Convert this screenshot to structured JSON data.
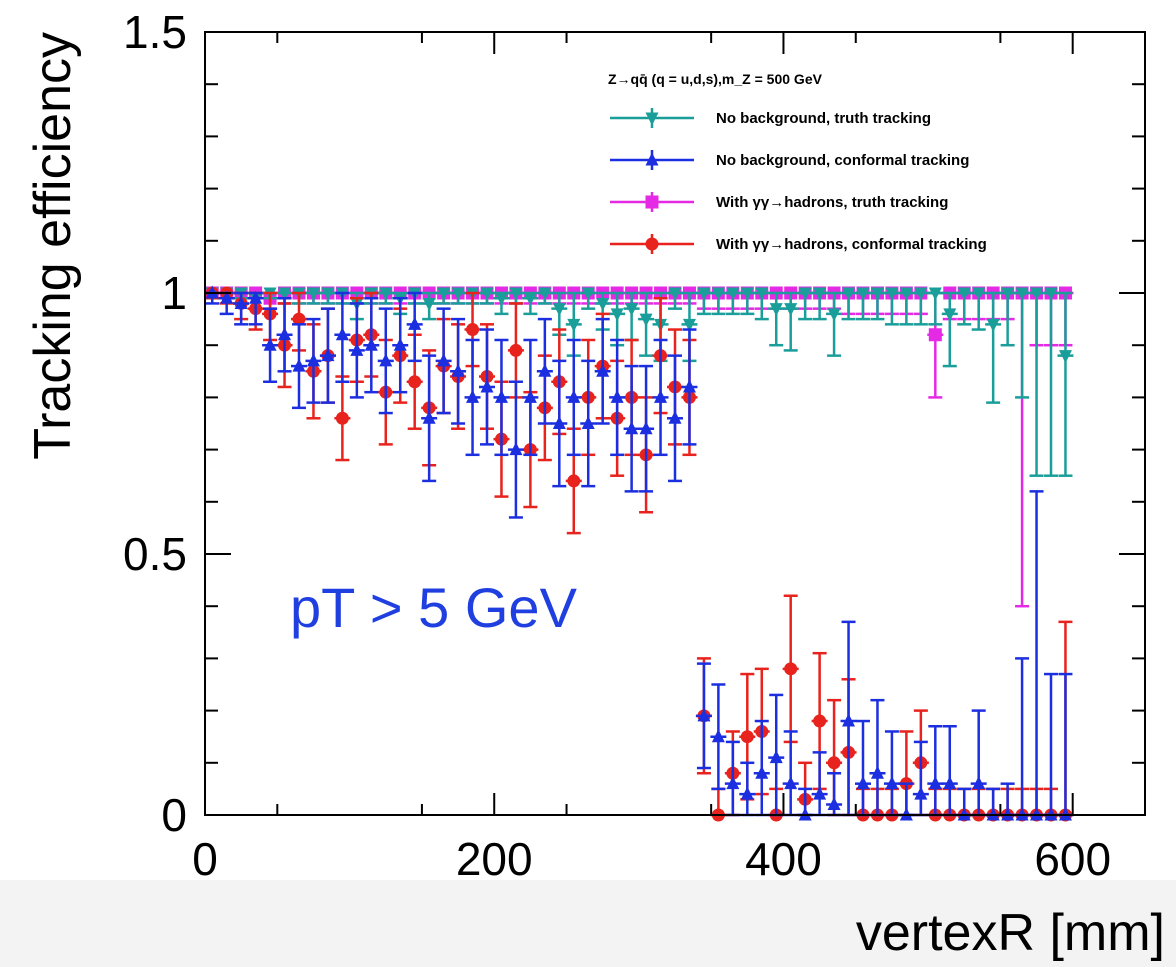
{
  "chart_data": {
    "type": "scatter",
    "xlabel": "vertexR [mm]",
    "ylabel": "Tracking efficiency",
    "xlim": [
      0,
      650
    ],
    "ylim": [
      0,
      1.5
    ],
    "x_ticks": [
      "0",
      "200",
      "400",
      "600"
    ],
    "y_ticks": [
      "0",
      "0.5",
      "1",
      "1.5"
    ],
    "legend_title": "Z→qq̄ (q = u,d,s),m_Z = 500 GeV",
    "legend_position": "top-right",
    "annotation": "pT > 5 GeV",
    "annotation_color": "#1f3fe0",
    "series": [
      {
        "name": "No background, truth tracking",
        "color": "#1a9e9a",
        "marker": "triangle-down",
        "x": [
          5,
          15,
          25,
          35,
          45,
          55,
          65,
          75,
          85,
          95,
          105,
          115,
          125,
          135,
          145,
          155,
          165,
          175,
          185,
          195,
          205,
          215,
          225,
          235,
          245,
          255,
          265,
          275,
          285,
          295,
          305,
          315,
          325,
          335,
          345,
          355,
          365,
          375,
          385,
          395,
          405,
          415,
          425,
          435,
          445,
          455,
          465,
          475,
          485,
          495,
          505,
          515,
          525,
          535,
          545,
          555,
          565,
          575,
          585,
          595
        ],
        "y": [
          1,
          1,
          1,
          0.99,
          1,
          1,
          1,
          1,
          1,
          1,
          0.98,
          1,
          1,
          0.99,
          1,
          0.98,
          1,
          1,
          1,
          1,
          0.99,
          1,
          0.99,
          1,
          0.97,
          0.94,
          1,
          0.98,
          0.96,
          0.97,
          0.95,
          0.94,
          1,
          0.94,
          1,
          1,
          1,
          1,
          1,
          0.97,
          0.97,
          1,
          1,
          0.96,
          1,
          1,
          1,
          1,
          1,
          1,
          1,
          0.96,
          1,
          1,
          0.94,
          1,
          1,
          1,
          1,
          0.88
        ],
        "err": [
          0.01,
          0.01,
          0.01,
          0.02,
          0.01,
          0.02,
          0.02,
          0.02,
          0.02,
          0.02,
          0.03,
          0.02,
          0.02,
          0.03,
          0.02,
          0.03,
          0.02,
          0.02,
          0.02,
          0.02,
          0.03,
          0.02,
          0.03,
          0.02,
          0.05,
          0.06,
          0.03,
          0.05,
          0.06,
          0.06,
          0.07,
          0.07,
          0.03,
          0.07,
          0.04,
          0.04,
          0.04,
          0.04,
          0.05,
          0.07,
          0.08,
          0.05,
          0.05,
          0.08,
          0.05,
          0.05,
          0.05,
          0.06,
          0.06,
          0.06,
          0.06,
          0.1,
          0.06,
          0.07,
          0.15,
          0.1,
          0.2,
          0.35,
          0.35,
          0.23
        ]
      },
      {
        "name": "No background, conformal tracking",
        "color": "#1c2fe0",
        "marker": "triangle-up",
        "x": [
          5,
          15,
          25,
          35,
          45,
          55,
          65,
          75,
          85,
          95,
          105,
          115,
          125,
          135,
          145,
          155,
          165,
          175,
          185,
          195,
          205,
          215,
          225,
          235,
          245,
          255,
          265,
          275,
          285,
          295,
          305,
          315,
          325,
          335,
          345,
          355,
          365,
          375,
          385,
          395,
          405,
          415,
          425,
          435,
          445,
          455,
          465,
          475,
          485,
          495,
          505,
          515,
          525,
          535,
          545,
          555,
          565,
          575,
          585,
          595
        ],
        "y": [
          1,
          0.99,
          0.98,
          0.99,
          0.9,
          0.92,
          0.86,
          0.87,
          0.88,
          0.92,
          0.89,
          0.9,
          0.87,
          0.9,
          0.94,
          0.76,
          0.87,
          0.85,
          0.8,
          0.82,
          0.8,
          0.7,
          0.8,
          0.85,
          0.75,
          0.8,
          0.75,
          0.85,
          0.8,
          0.74,
          0.74,
          0.8,
          0.76,
          0.82,
          0.19,
          0.15,
          0.06,
          0.04,
          0.08,
          0.11,
          0.06,
          0,
          0.04,
          0.02,
          0.18,
          0.06,
          0.08,
          0.06,
          0,
          0.04,
          0.06,
          0.06,
          0,
          0.06,
          0,
          0,
          0,
          0,
          0,
          0
        ],
        "err": [
          0.02,
          0.03,
          0.04,
          0.05,
          0.07,
          0.07,
          0.08,
          0.08,
          0.09,
          0.09,
          0.09,
          0.09,
          0.1,
          0.09,
          0.07,
          0.12,
          0.1,
          0.1,
          0.11,
          0.11,
          0.11,
          0.13,
          0.11,
          0.1,
          0.12,
          0.11,
          0.12,
          0.1,
          0.11,
          0.12,
          0.12,
          0.11,
          0.12,
          0.11,
          0.1,
          0.1,
          0.08,
          0.06,
          0.1,
          0.12,
          0.1,
          0.05,
          0.08,
          0.06,
          0.19,
          0.12,
          0.14,
          0.1,
          0.06,
          0.1,
          0.11,
          0.11,
          0.05,
          0.14,
          0.05,
          0.06,
          0.3,
          0.62,
          0.27,
          0.27
        ]
      },
      {
        "name": "With γγ→hadrons, truth tracking",
        "color": "#e52ae5",
        "marker": "square",
        "x": [
          5,
          15,
          25,
          35,
          45,
          55,
          65,
          75,
          85,
          95,
          105,
          115,
          125,
          135,
          145,
          155,
          165,
          175,
          185,
          195,
          205,
          215,
          225,
          235,
          245,
          255,
          265,
          275,
          285,
          295,
          305,
          315,
          325,
          335,
          345,
          355,
          365,
          375,
          385,
          395,
          405,
          415,
          425,
          435,
          445,
          455,
          465,
          475,
          485,
          495,
          505,
          515,
          525,
          535,
          545,
          555,
          565,
          575,
          585,
          595
        ],
        "y": [
          1,
          1,
          1,
          1,
          0.99,
          1,
          1,
          1,
          1,
          1,
          1,
          1,
          1,
          1,
          1,
          1,
          1,
          1,
          1,
          1,
          1,
          1,
          1,
          1,
          1,
          1,
          1,
          1,
          1,
          1,
          1,
          1,
          1,
          1,
          1,
          1,
          1,
          1,
          1,
          1,
          1,
          1,
          1,
          1,
          1,
          1,
          1,
          1,
          1,
          1,
          0.92,
          1,
          1,
          1,
          1,
          1,
          1,
          1,
          1,
          1
        ],
        "err": [
          0.01,
          0.01,
          0.01,
          0.01,
          0.02,
          0.02,
          0.02,
          0.02,
          0.02,
          0.02,
          0.02,
          0.02,
          0.02,
          0.02,
          0.02,
          0.02,
          0.02,
          0.02,
          0.02,
          0.02,
          0.02,
          0.02,
          0.02,
          0.02,
          0.02,
          0.02,
          0.02,
          0.02,
          0.02,
          0.02,
          0.02,
          0.02,
          0.02,
          0.02,
          0.03,
          0.03,
          0.03,
          0.03,
          0.03,
          0.03,
          0.03,
          0.03,
          0.03,
          0.03,
          0.04,
          0.04,
          0.04,
          0.04,
          0.04,
          0.04,
          0.12,
          0.05,
          0.05,
          0.05,
          0.05,
          0.05,
          0.6,
          0.1,
          0.1,
          0.1
        ]
      },
      {
        "name": "With γγ→hadrons, conformal tracking",
        "color": "#e8221c",
        "marker": "circle",
        "x": [
          5,
          15,
          25,
          35,
          45,
          55,
          65,
          75,
          85,
          95,
          105,
          115,
          125,
          135,
          145,
          155,
          165,
          175,
          185,
          195,
          205,
          215,
          225,
          235,
          245,
          255,
          265,
          275,
          285,
          295,
          305,
          315,
          325,
          335,
          345,
          355,
          365,
          375,
          385,
          395,
          405,
          415,
          425,
          435,
          445,
          455,
          465,
          475,
          485,
          495,
          505,
          515,
          525,
          535,
          545,
          555,
          565,
          575,
          585,
          595
        ],
        "y": [
          1,
          1,
          0.98,
          0.97,
          0.96,
          0.9,
          0.95,
          0.85,
          0.88,
          0.76,
          0.91,
          0.92,
          0.81,
          0.88,
          0.83,
          0.78,
          0.86,
          0.84,
          0.93,
          0.84,
          0.72,
          0.89,
          0.7,
          0.78,
          0.83,
          0.64,
          0.8,
          0.86,
          0.76,
          0.8,
          0.69,
          0.88,
          0.82,
          0.8,
          0.19,
          0,
          0.08,
          0.15,
          0.16,
          0,
          0.28,
          0.03,
          0.18,
          0.1,
          0.12,
          0,
          0,
          0,
          0.06,
          0.1,
          0,
          0,
          0,
          0,
          0,
          0,
          0,
          0,
          0,
          0
        ],
        "err": [
          0.01,
          0.02,
          0.03,
          0.04,
          0.05,
          0.08,
          0.06,
          0.09,
          0.09,
          0.08,
          0.08,
          0.08,
          0.1,
          0.09,
          0.09,
          0.11,
          0.09,
          0.1,
          0.07,
          0.1,
          0.11,
          0.09,
          0.11,
          0.1,
          0.1,
          0.1,
          0.11,
          0.1,
          0.11,
          0.11,
          0.11,
          0.11,
          0.11,
          0.11,
          0.11,
          0.05,
          0.08,
          0.12,
          0.12,
          0.05,
          0.14,
          0.07,
          0.13,
          0.12,
          0.14,
          0.05,
          0.05,
          0.05,
          0.1,
          0.1,
          0.05,
          0.05,
          0.05,
          0.05,
          0.05,
          0.05,
          0.05,
          0.05,
          0.05,
          0.37
        ]
      }
    ]
  }
}
